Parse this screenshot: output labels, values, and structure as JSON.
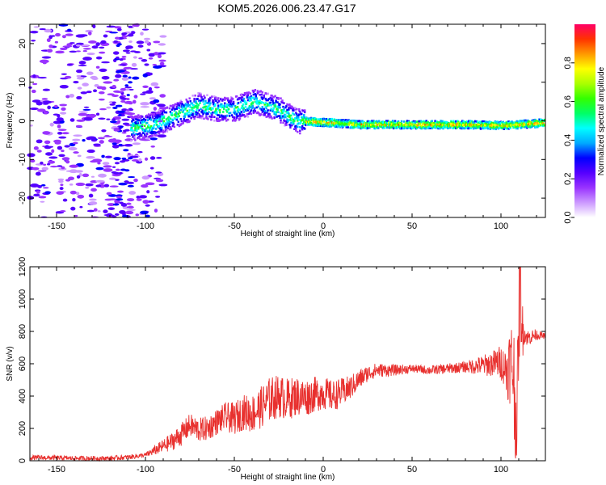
{
  "title": "KOM5.2026.006.23.47.G17",
  "chart_data": [
    {
      "type": "heatmap",
      "xlabel": "Height of straight line (km)",
      "ylabel": "Frequency (Hz)",
      "xlim": [
        -165,
        125
      ],
      "ylim": [
        -25,
        25
      ],
      "xticks": [
        -150,
        -100,
        -50,
        0,
        50,
        100
      ],
      "yticks": [
        -20,
        -10,
        0,
        10,
        20
      ],
      "colorbar": {
        "label": "Normalized spectral amplitude",
        "range": [
          0,
          1
        ],
        "ticks": [
          "0.0",
          "0.2",
          "0.4",
          "0.6",
          "0.8"
        ],
        "colors": [
          "#ffffff",
          "#cc99ff",
          "#9933ff",
          "#5500ff",
          "#0000ff",
          "#00aaff",
          "#00ffff",
          "#00ff66",
          "#33ff00",
          "#aaff00",
          "#ffff00",
          "#ff9900",
          "#ff3300",
          "#ff0066"
        ]
      },
      "ridge": [
        {
          "x": -108,
          "y": -2
        },
        {
          "x": -95,
          "y": -1
        },
        {
          "x": -85,
          "y": 1
        },
        {
          "x": -70,
          "y": 4
        },
        {
          "x": -60,
          "y": 3
        },
        {
          "x": -50,
          "y": 3
        },
        {
          "x": -38,
          "y": 5
        },
        {
          "x": -25,
          "y": 3
        },
        {
          "x": -15,
          "y": 0
        },
        {
          "x": -5,
          "y": -0.3
        },
        {
          "x": 5,
          "y": -0.5
        },
        {
          "x": 20,
          "y": -1
        },
        {
          "x": 50,
          "y": -1
        },
        {
          "x": 80,
          "y": -1
        },
        {
          "x": 100,
          "y": -1.2
        },
        {
          "x": 110,
          "y": -1
        },
        {
          "x": 125,
          "y": -0.5
        }
      ]
    },
    {
      "type": "line",
      "xlabel": "Height of straight line (km)",
      "ylabel": "SNR (v/v)",
      "xlim": [
        -165,
        125
      ],
      "ylim": [
        0,
        1200
      ],
      "xticks": [
        -150,
        -100,
        -50,
        0,
        50,
        100
      ],
      "yticks": [
        0,
        200,
        400,
        600,
        800,
        1000,
        1200
      ],
      "color": "#e8302e",
      "series": [
        {
          "x": [
            -165,
            -150,
            -140,
            -130,
            -120,
            -110,
            -100,
            -90,
            -85,
            -80,
            -75,
            -70,
            -65,
            -60,
            -55,
            -50,
            -45,
            -40,
            -35,
            -30,
            -25,
            -20,
            -15,
            -10,
            -5,
            0,
            5,
            10,
            15,
            20,
            25,
            30,
            40,
            50,
            60,
            70,
            80,
            90,
            95,
            100,
            103,
            105,
            107,
            108,
            109,
            110,
            111,
            112,
            115,
            120,
            125
          ],
          "y": [
            20,
            18,
            15,
            15,
            15,
            22,
            35,
            90,
            120,
            160,
            220,
            190,
            200,
            240,
            270,
            260,
            300,
            290,
            330,
            380,
            400,
            380,
            400,
            390,
            410,
            420,
            400,
            420,
            450,
            500,
            540,
            560,
            560,
            570,
            560,
            570,
            580,
            590,
            600,
            610,
            560,
            600,
            580,
            300,
            120,
            900,
            1100,
            800,
            760,
            780,
            770
          ],
          "envelope": [
            {
              "x": -100,
              "amp": 15
            },
            {
              "x": -80,
              "amp": 70
            },
            {
              "x": -60,
              "amp": 80
            },
            {
              "x": -45,
              "amp": 110
            },
            {
              "x": -30,
              "amp": 140
            },
            {
              "x": -20,
              "amp": 130
            },
            {
              "x": -5,
              "amp": 110
            },
            {
              "x": 10,
              "amp": 90
            },
            {
              "x": 25,
              "amp": 50
            },
            {
              "x": 50,
              "amp": 25
            },
            {
              "x": 80,
              "amp": 35
            },
            {
              "x": 95,
              "amp": 80
            },
            {
              "x": 102,
              "amp": 120
            },
            {
              "x": 105,
              "amp": 250
            },
            {
              "x": 108,
              "amp": 400
            },
            {
              "x": 111,
              "amp": 350
            },
            {
              "x": 113,
              "amp": 60
            },
            {
              "x": 125,
              "amp": 15
            }
          ]
        }
      ]
    }
  ]
}
